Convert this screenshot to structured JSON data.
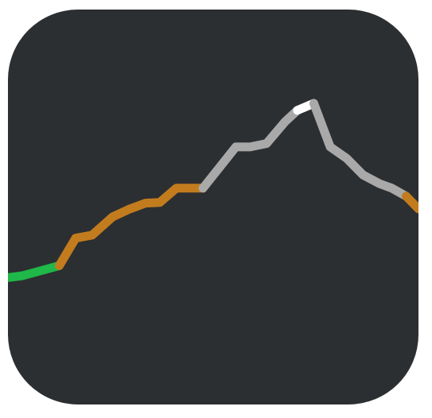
{
  "icon": {
    "name": "elevation-profile-app-icon",
    "background_color": "#2c2f31",
    "page_background": "#ffffff"
  },
  "chart_data": {
    "type": "line",
    "series": [
      {
        "color": "#1fb849",
        "points": [
          [
            0,
            28.0
          ],
          [
            3.5,
            28.8
          ],
          [
            12.5,
            33.2
          ]
        ]
      },
      {
        "color": "#c27c1e",
        "points": [
          [
            12.5,
            33.2
          ],
          [
            16.5,
            45.2
          ],
          [
            20.5,
            46.5
          ],
          [
            25.5,
            54.5
          ],
          [
            29.5,
            57.8
          ],
          [
            33.5,
            60.5
          ],
          [
            37.0,
            60.8
          ],
          [
            41.0,
            67.0
          ],
          [
            47.5,
            67.0
          ]
        ]
      },
      {
        "color": "#a9a9a9",
        "points": [
          [
            47.5,
            67.0
          ],
          [
            55.5,
            85.0
          ],
          [
            59.0,
            85.0
          ],
          [
            63.0,
            86.5
          ],
          [
            67.5,
            96.0
          ],
          [
            70.5,
            101.0
          ]
        ]
      },
      {
        "color": "#ffffff",
        "points": [
          [
            70.5,
            101.0
          ],
          [
            74.5,
            104.0
          ]
        ]
      },
      {
        "color": "#a9a9a9",
        "points": [
          [
            74.5,
            104.0
          ],
          [
            78.5,
            85.0
          ],
          [
            82.5,
            80.0
          ],
          [
            86.5,
            72.8
          ],
          [
            90.5,
            69.0
          ],
          [
            93.5,
            67.0
          ],
          [
            97.0,
            63.5
          ]
        ]
      },
      {
        "color": "#c27c1e",
        "points": [
          [
            97.0,
            63.5
          ],
          [
            100.0,
            58.0
          ]
        ]
      }
    ],
    "xlim": [
      0,
      100
    ],
    "ylim": [
      0,
      120
    ]
  }
}
